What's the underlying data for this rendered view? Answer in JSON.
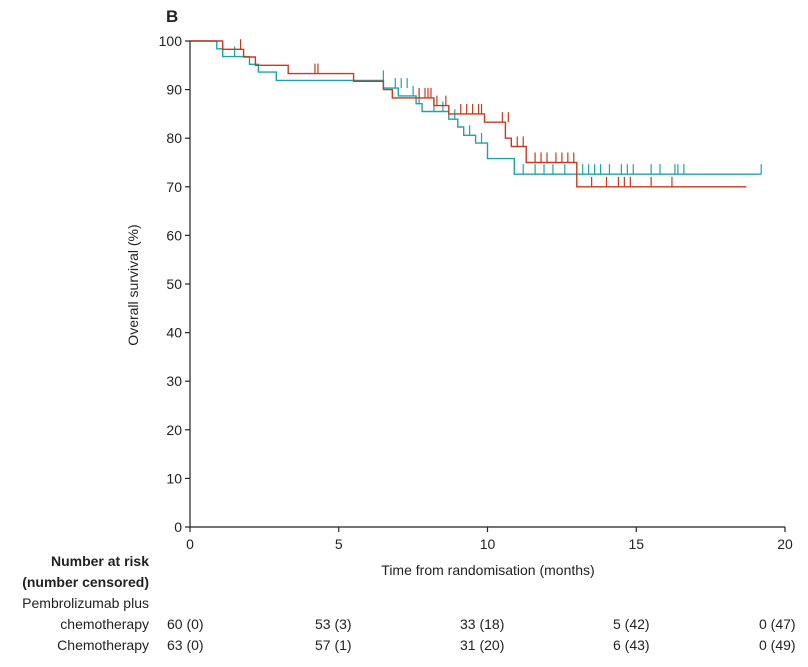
{
  "panel_label": "B",
  "chart_data": {
    "type": "line",
    "subtype": "kaplan-meier",
    "xlabel": "Time from randomisation (months)",
    "ylabel": "Overall survival (%)",
    "xlim": [
      0,
      20
    ],
    "ylim": [
      0,
      100
    ],
    "xticks": [
      0,
      5,
      10,
      15,
      20
    ],
    "yticks": [
      0,
      10,
      20,
      30,
      40,
      50,
      60,
      70,
      80,
      90,
      100
    ],
    "grid": false,
    "colors": {
      "pembro": "#c8391f",
      "chemo": "#1fa3a8",
      "axis": "#222222"
    },
    "series": [
      {
        "key": "pembro",
        "steps": [
          [
            0,
            100
          ],
          [
            1.1,
            100
          ],
          [
            1.1,
            98.3
          ],
          [
            1.8,
            98.3
          ],
          [
            1.8,
            96.7
          ],
          [
            2.2,
            96.7
          ],
          [
            2.2,
            95.0
          ],
          [
            3.3,
            95.0
          ],
          [
            3.3,
            93.3
          ],
          [
            5.5,
            93.3
          ],
          [
            5.5,
            91.7
          ],
          [
            6.5,
            91.7
          ],
          [
            6.5,
            90.0
          ],
          [
            6.8,
            90.0
          ],
          [
            6.8,
            88.3
          ],
          [
            8.2,
            88.3
          ],
          [
            8.2,
            86.7
          ],
          [
            8.7,
            86.7
          ],
          [
            8.7,
            85.0
          ],
          [
            9.9,
            85.0
          ],
          [
            9.9,
            83.3
          ],
          [
            10.6,
            83.3
          ],
          [
            10.6,
            80.0
          ],
          [
            10.8,
            80.0
          ],
          [
            10.8,
            78.3
          ],
          [
            11.3,
            78.3
          ],
          [
            11.3,
            75.0
          ],
          [
            13.0,
            75.0
          ],
          [
            13.0,
            70.0
          ],
          [
            18.7,
            70.0
          ]
        ],
        "censors": [
          [
            1.7,
            98.3
          ],
          [
            4.2,
            93.3
          ],
          [
            4.3,
            93.3
          ],
          [
            7.7,
            88.3
          ],
          [
            7.9,
            88.3
          ],
          [
            8.0,
            88.3
          ],
          [
            8.1,
            88.3
          ],
          [
            8.3,
            86.7
          ],
          [
            8.6,
            86.7
          ],
          [
            9.1,
            85.0
          ],
          [
            9.3,
            85.0
          ],
          [
            9.5,
            85.0
          ],
          [
            9.7,
            85.0
          ],
          [
            9.8,
            85.0
          ],
          [
            10.5,
            83.3
          ],
          [
            10.7,
            83.3
          ],
          [
            11.0,
            78.3
          ],
          [
            11.2,
            78.3
          ],
          [
            11.6,
            75.0
          ],
          [
            11.8,
            75.0
          ],
          [
            12.0,
            75.0
          ],
          [
            12.3,
            75.0
          ],
          [
            12.5,
            75.0
          ],
          [
            12.7,
            75.0
          ],
          [
            12.9,
            75.0
          ],
          [
            13.5,
            70.0
          ],
          [
            14.0,
            70.0
          ],
          [
            14.4,
            70.0
          ],
          [
            14.6,
            70.0
          ],
          [
            14.8,
            70.0
          ],
          [
            15.5,
            70.0
          ],
          [
            16.2,
            70.0
          ]
        ]
      },
      {
        "key": "chemo",
        "steps": [
          [
            0,
            100
          ],
          [
            0.9,
            100
          ],
          [
            0.9,
            98.4
          ],
          [
            1.1,
            98.4
          ],
          [
            1.1,
            96.8
          ],
          [
            2.0,
            96.8
          ],
          [
            2.0,
            95.2
          ],
          [
            2.3,
            95.2
          ],
          [
            2.3,
            93.6
          ],
          [
            2.9,
            93.6
          ],
          [
            2.9,
            91.9
          ],
          [
            6.5,
            91.9
          ],
          [
            6.5,
            90.3
          ],
          [
            7.0,
            90.3
          ],
          [
            7.0,
            88.7
          ],
          [
            7.6,
            88.7
          ],
          [
            7.6,
            87.1
          ],
          [
            7.8,
            87.1
          ],
          [
            7.8,
            85.5
          ],
          [
            8.7,
            85.5
          ],
          [
            8.7,
            83.9
          ],
          [
            9.0,
            83.9
          ],
          [
            9.0,
            82.3
          ],
          [
            9.2,
            82.3
          ],
          [
            9.2,
            80.6
          ],
          [
            9.6,
            80.6
          ],
          [
            9.6,
            79.0
          ],
          [
            10.0,
            79.0
          ],
          [
            10.0,
            75.8
          ],
          [
            10.9,
            75.8
          ],
          [
            10.9,
            72.6
          ],
          [
            19.2,
            72.6
          ]
        ],
        "censors": [
          [
            1.5,
            96.8
          ],
          [
            6.5,
            91.9
          ],
          [
            6.9,
            90.3
          ],
          [
            7.1,
            90.3
          ],
          [
            7.3,
            90.3
          ],
          [
            7.5,
            88.7
          ],
          [
            7.7,
            87.1
          ],
          [
            8.2,
            85.5
          ],
          [
            8.5,
            85.5
          ],
          [
            8.9,
            83.9
          ],
          [
            9.4,
            80.6
          ],
          [
            9.8,
            79.0
          ],
          [
            11.2,
            72.6
          ],
          [
            11.6,
            72.6
          ],
          [
            11.9,
            72.6
          ],
          [
            12.2,
            72.6
          ],
          [
            12.6,
            72.6
          ],
          [
            13.2,
            72.6
          ],
          [
            13.4,
            72.6
          ],
          [
            13.6,
            72.6
          ],
          [
            13.8,
            72.6
          ],
          [
            14.1,
            72.6
          ],
          [
            14.5,
            72.6
          ],
          [
            14.7,
            72.6
          ],
          [
            14.9,
            72.6
          ],
          [
            15.5,
            72.6
          ],
          [
            15.8,
            72.6
          ],
          [
            16.3,
            72.6
          ],
          [
            16.4,
            72.6
          ],
          [
            16.6,
            72.6
          ],
          [
            19.2,
            72.6
          ]
        ]
      }
    ]
  },
  "risk_table": {
    "title_line1": "Number at risk",
    "title_line2": "(number censored)",
    "rows": [
      {
        "label_line1": "Pembrolizumab plus",
        "label_line2": "chemotherapy",
        "values": [
          "60 (0)",
          "53 (3)",
          "33 (18)",
          "5 (42)",
          "0 (47)"
        ]
      },
      {
        "label_line1": "",
        "label_line2": "Chemotherapy",
        "values": [
          "63 (0)",
          "57 (1)",
          "31 (20)",
          "6 (43)",
          "0 (49)"
        ]
      }
    ]
  }
}
